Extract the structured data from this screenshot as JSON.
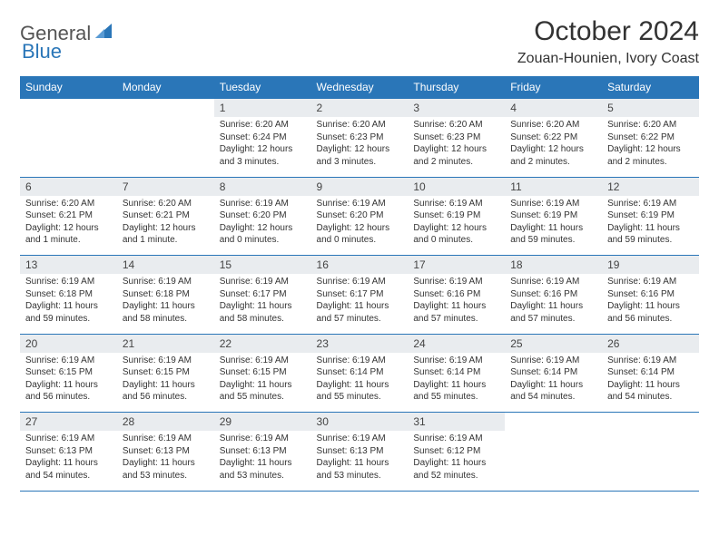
{
  "brand": {
    "part1": "General",
    "part2": "Blue"
  },
  "title": "October 2024",
  "location": "Zouan-Hounien, Ivory Coast",
  "colors": {
    "header_bg": "#2a76b8",
    "header_text": "#ffffff",
    "daynum_bg": "#e9ecef",
    "border": "#2a76b8",
    "body_text": "#333333",
    "logo_gray": "#555555",
    "logo_blue": "#2a76b8",
    "page_bg": "#ffffff"
  },
  "typography": {
    "title_fontsize": 30,
    "location_fontsize": 16,
    "dayhead_fontsize": 12,
    "daynum_fontsize": 12,
    "cell_fontsize": 10
  },
  "day_headers": [
    "Sunday",
    "Monday",
    "Tuesday",
    "Wednesday",
    "Thursday",
    "Friday",
    "Saturday"
  ],
  "weeks": [
    {
      "nums": [
        "",
        "",
        "1",
        "2",
        "3",
        "4",
        "5"
      ],
      "cells": [
        {},
        {},
        {
          "sunrise": "Sunrise: 6:20 AM",
          "sunset": "Sunset: 6:24 PM",
          "day1": "Daylight: 12 hours",
          "day2": "and 3 minutes."
        },
        {
          "sunrise": "Sunrise: 6:20 AM",
          "sunset": "Sunset: 6:23 PM",
          "day1": "Daylight: 12 hours",
          "day2": "and 3 minutes."
        },
        {
          "sunrise": "Sunrise: 6:20 AM",
          "sunset": "Sunset: 6:23 PM",
          "day1": "Daylight: 12 hours",
          "day2": "and 2 minutes."
        },
        {
          "sunrise": "Sunrise: 6:20 AM",
          "sunset": "Sunset: 6:22 PM",
          "day1": "Daylight: 12 hours",
          "day2": "and 2 minutes."
        },
        {
          "sunrise": "Sunrise: 6:20 AM",
          "sunset": "Sunset: 6:22 PM",
          "day1": "Daylight: 12 hours",
          "day2": "and 2 minutes."
        }
      ]
    },
    {
      "nums": [
        "6",
        "7",
        "8",
        "9",
        "10",
        "11",
        "12"
      ],
      "cells": [
        {
          "sunrise": "Sunrise: 6:20 AM",
          "sunset": "Sunset: 6:21 PM",
          "day1": "Daylight: 12 hours",
          "day2": "and 1 minute."
        },
        {
          "sunrise": "Sunrise: 6:20 AM",
          "sunset": "Sunset: 6:21 PM",
          "day1": "Daylight: 12 hours",
          "day2": "and 1 minute."
        },
        {
          "sunrise": "Sunrise: 6:19 AM",
          "sunset": "Sunset: 6:20 PM",
          "day1": "Daylight: 12 hours",
          "day2": "and 0 minutes."
        },
        {
          "sunrise": "Sunrise: 6:19 AM",
          "sunset": "Sunset: 6:20 PM",
          "day1": "Daylight: 12 hours",
          "day2": "and 0 minutes."
        },
        {
          "sunrise": "Sunrise: 6:19 AM",
          "sunset": "Sunset: 6:19 PM",
          "day1": "Daylight: 12 hours",
          "day2": "and 0 minutes."
        },
        {
          "sunrise": "Sunrise: 6:19 AM",
          "sunset": "Sunset: 6:19 PM",
          "day1": "Daylight: 11 hours",
          "day2": "and 59 minutes."
        },
        {
          "sunrise": "Sunrise: 6:19 AM",
          "sunset": "Sunset: 6:19 PM",
          "day1": "Daylight: 11 hours",
          "day2": "and 59 minutes."
        }
      ]
    },
    {
      "nums": [
        "13",
        "14",
        "15",
        "16",
        "17",
        "18",
        "19"
      ],
      "cells": [
        {
          "sunrise": "Sunrise: 6:19 AM",
          "sunset": "Sunset: 6:18 PM",
          "day1": "Daylight: 11 hours",
          "day2": "and 59 minutes."
        },
        {
          "sunrise": "Sunrise: 6:19 AM",
          "sunset": "Sunset: 6:18 PM",
          "day1": "Daylight: 11 hours",
          "day2": "and 58 minutes."
        },
        {
          "sunrise": "Sunrise: 6:19 AM",
          "sunset": "Sunset: 6:17 PM",
          "day1": "Daylight: 11 hours",
          "day2": "and 58 minutes."
        },
        {
          "sunrise": "Sunrise: 6:19 AM",
          "sunset": "Sunset: 6:17 PM",
          "day1": "Daylight: 11 hours",
          "day2": "and 57 minutes."
        },
        {
          "sunrise": "Sunrise: 6:19 AM",
          "sunset": "Sunset: 6:16 PM",
          "day1": "Daylight: 11 hours",
          "day2": "and 57 minutes."
        },
        {
          "sunrise": "Sunrise: 6:19 AM",
          "sunset": "Sunset: 6:16 PM",
          "day1": "Daylight: 11 hours",
          "day2": "and 57 minutes."
        },
        {
          "sunrise": "Sunrise: 6:19 AM",
          "sunset": "Sunset: 6:16 PM",
          "day1": "Daylight: 11 hours",
          "day2": "and 56 minutes."
        }
      ]
    },
    {
      "nums": [
        "20",
        "21",
        "22",
        "23",
        "24",
        "25",
        "26"
      ],
      "cells": [
        {
          "sunrise": "Sunrise: 6:19 AM",
          "sunset": "Sunset: 6:15 PM",
          "day1": "Daylight: 11 hours",
          "day2": "and 56 minutes."
        },
        {
          "sunrise": "Sunrise: 6:19 AM",
          "sunset": "Sunset: 6:15 PM",
          "day1": "Daylight: 11 hours",
          "day2": "and 56 minutes."
        },
        {
          "sunrise": "Sunrise: 6:19 AM",
          "sunset": "Sunset: 6:15 PM",
          "day1": "Daylight: 11 hours",
          "day2": "and 55 minutes."
        },
        {
          "sunrise": "Sunrise: 6:19 AM",
          "sunset": "Sunset: 6:14 PM",
          "day1": "Daylight: 11 hours",
          "day2": "and 55 minutes."
        },
        {
          "sunrise": "Sunrise: 6:19 AM",
          "sunset": "Sunset: 6:14 PM",
          "day1": "Daylight: 11 hours",
          "day2": "and 55 minutes."
        },
        {
          "sunrise": "Sunrise: 6:19 AM",
          "sunset": "Sunset: 6:14 PM",
          "day1": "Daylight: 11 hours",
          "day2": "and 54 minutes."
        },
        {
          "sunrise": "Sunrise: 6:19 AM",
          "sunset": "Sunset: 6:14 PM",
          "day1": "Daylight: 11 hours",
          "day2": "and 54 minutes."
        }
      ]
    },
    {
      "nums": [
        "27",
        "28",
        "29",
        "30",
        "31",
        "",
        ""
      ],
      "cells": [
        {
          "sunrise": "Sunrise: 6:19 AM",
          "sunset": "Sunset: 6:13 PM",
          "day1": "Daylight: 11 hours",
          "day2": "and 54 minutes."
        },
        {
          "sunrise": "Sunrise: 6:19 AM",
          "sunset": "Sunset: 6:13 PM",
          "day1": "Daylight: 11 hours",
          "day2": "and 53 minutes."
        },
        {
          "sunrise": "Sunrise: 6:19 AM",
          "sunset": "Sunset: 6:13 PM",
          "day1": "Daylight: 11 hours",
          "day2": "and 53 minutes."
        },
        {
          "sunrise": "Sunrise: 6:19 AM",
          "sunset": "Sunset: 6:13 PM",
          "day1": "Daylight: 11 hours",
          "day2": "and 53 minutes."
        },
        {
          "sunrise": "Sunrise: 6:19 AM",
          "sunset": "Sunset: 6:12 PM",
          "day1": "Daylight: 11 hours",
          "day2": "and 52 minutes."
        },
        {},
        {}
      ]
    }
  ]
}
